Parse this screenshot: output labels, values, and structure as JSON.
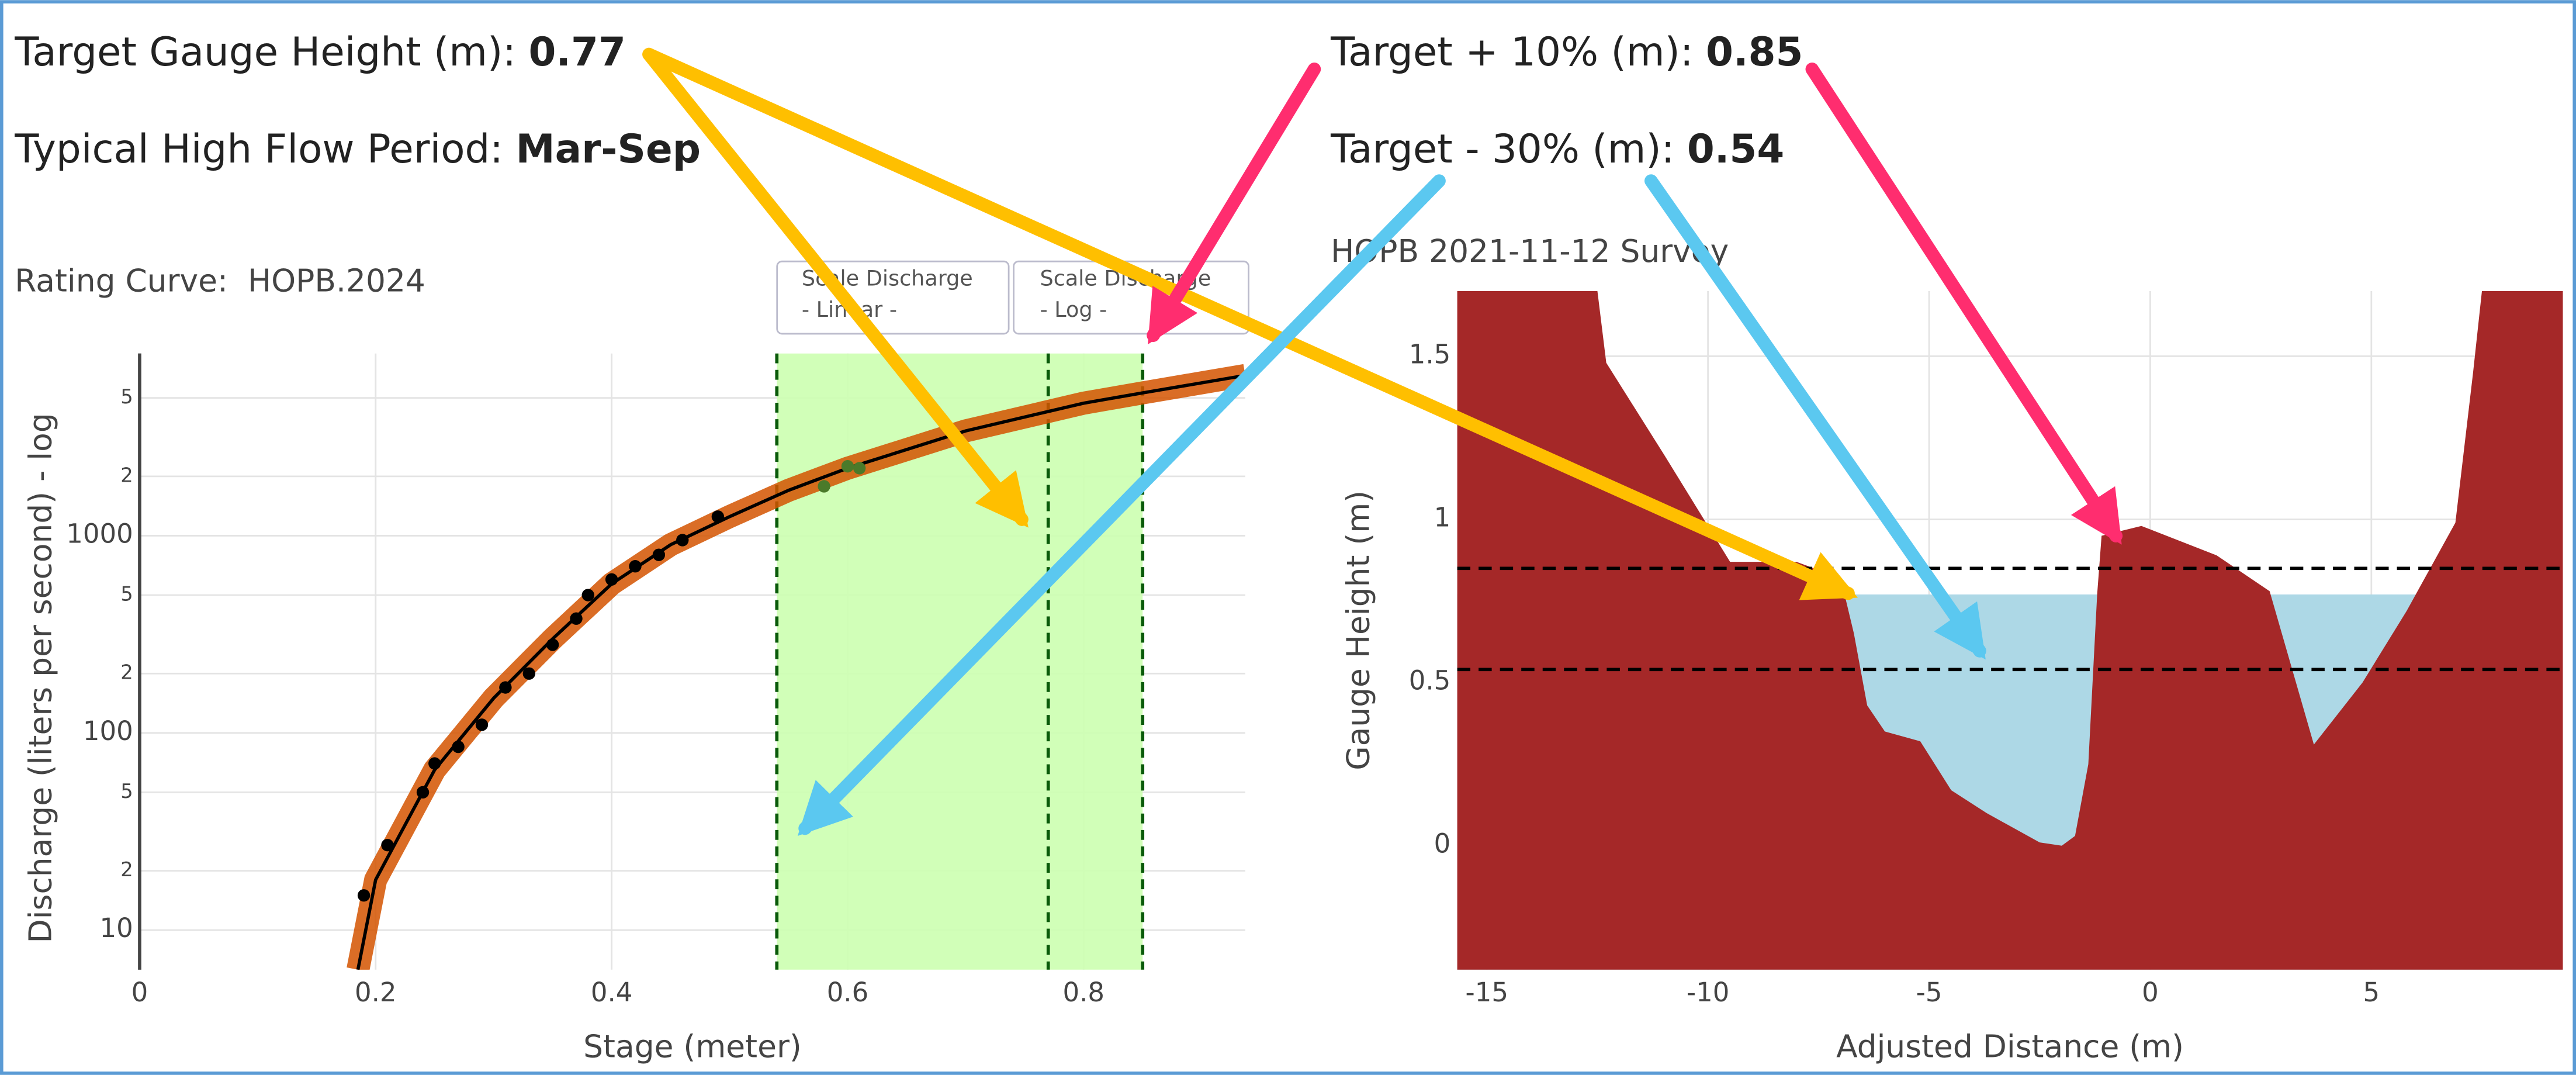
{
  "header": {
    "target_label": "Target Gauge Height (m): ",
    "target": 0.77,
    "high_flow_label": "Typical High Flow Period: ",
    "high_flow": "Mar-Sep",
    "plus10_label": "Target + 10% (m): ",
    "plus10": 0.85,
    "minus30_label": "Target - 30% (m): ",
    "minus30": 0.54
  },
  "buttons": [
    {
      "line1": "Scale Discharge",
      "line2": "- Linear -"
    },
    {
      "line1": "Scale Discharge",
      "line2": "- Log -"
    }
  ],
  "chart_data": [
    {
      "type": "line",
      "title": "Rating Curve:  HOPB.2024",
      "xlabel": "Stage (meter)",
      "ylabel": "Discharge (liters per second) - log",
      "log_y": true,
      "grid": true,
      "color": "#000000",
      "band_color": "#d35400",
      "shade_color": "#ccffb0",
      "x": [
        0.185,
        0.2,
        0.25,
        0.3,
        0.35,
        0.4,
        0.45,
        0.5,
        0.55,
        0.6,
        0.7,
        0.8,
        0.85,
        0.937
      ],
      "values": [
        6.3,
        18,
        65,
        150,
        300,
        570,
        900,
        1250,
        1700,
        2200,
        3400,
        4700,
        5300,
        6500
      ],
      "points": {
        "color": "#000000",
        "x": [
          0.19,
          0.21,
          0.24,
          0.25,
          0.27,
          0.29,
          0.31,
          0.33,
          0.35,
          0.37,
          0.38,
          0.4,
          0.42,
          0.44,
          0.46,
          0.49
        ],
        "values": [
          15,
          27,
          50,
          70,
          85,
          110,
          170,
          200,
          280,
          380,
          500,
          600,
          700,
          800,
          950,
          1250
        ]
      },
      "recent_points": {
        "color": "#4a7a2a",
        "x": [
          0.58,
          0.6,
          0.61
        ],
        "values": [
          1780,
          2250,
          2200
        ]
      },
      "xlim": [
        0,
        0.937
      ],
      "xticks": [
        0,
        0.2,
        0.4,
        0.6,
        0.8
      ],
      "ylim": [
        6.3,
        8400
      ],
      "yticks": [
        10,
        {
          "value": 20,
          "label": "2"
        },
        {
          "value": 50,
          "label": "5"
        },
        100,
        {
          "value": 200,
          "label": "2"
        },
        {
          "value": 500,
          "label": "5"
        },
        1000,
        {
          "value": 2000,
          "label": "2"
        },
        {
          "value": 5000,
          "label": "5"
        }
      ]
    },
    {
      "type": "area",
      "title": "HOPB 2021-11-12 Survey",
      "xlabel": "Adjusted Distance (m)",
      "ylabel": "Gauge Height (m)",
      "grid": true,
      "color": "#a52828",
      "water_color": "#add8e6",
      "x": [
        -15.67,
        -12.5,
        -12.3,
        -11,
        -9.5,
        -8,
        -7,
        -6.7,
        -6.4,
        -6,
        -5.2,
        -4.5,
        -3.7,
        -2.5,
        -2,
        -1.7,
        -1.4,
        -1.2,
        -1.1,
        -0.2,
        1.5,
        2.7,
        3.7,
        4.8,
        5.8,
        6.9,
        7.3,
        7.5,
        9.33
      ],
      "values": [
        1.7,
        1.7,
        1.48,
        1.2,
        0.87,
        0.87,
        0.82,
        0.65,
        0.43,
        0.35,
        0.32,
        0.17,
        0.1,
        0.01,
        0,
        0.03,
        0.25,
        0.77,
        0.95,
        0.98,
        0.89,
        0.78,
        0.31,
        0.5,
        0.72,
        0.99,
        1.45,
        1.7,
        1.7
      ],
      "xlim": [
        -15.67,
        9.33
      ],
      "xticks": [
        -15,
        -10,
        -5,
        0,
        5
      ],
      "ylim": [
        -0.38,
        1.7
      ],
      "yticks": [
        0,
        0.5,
        1,
        1.5
      ]
    }
  ]
}
